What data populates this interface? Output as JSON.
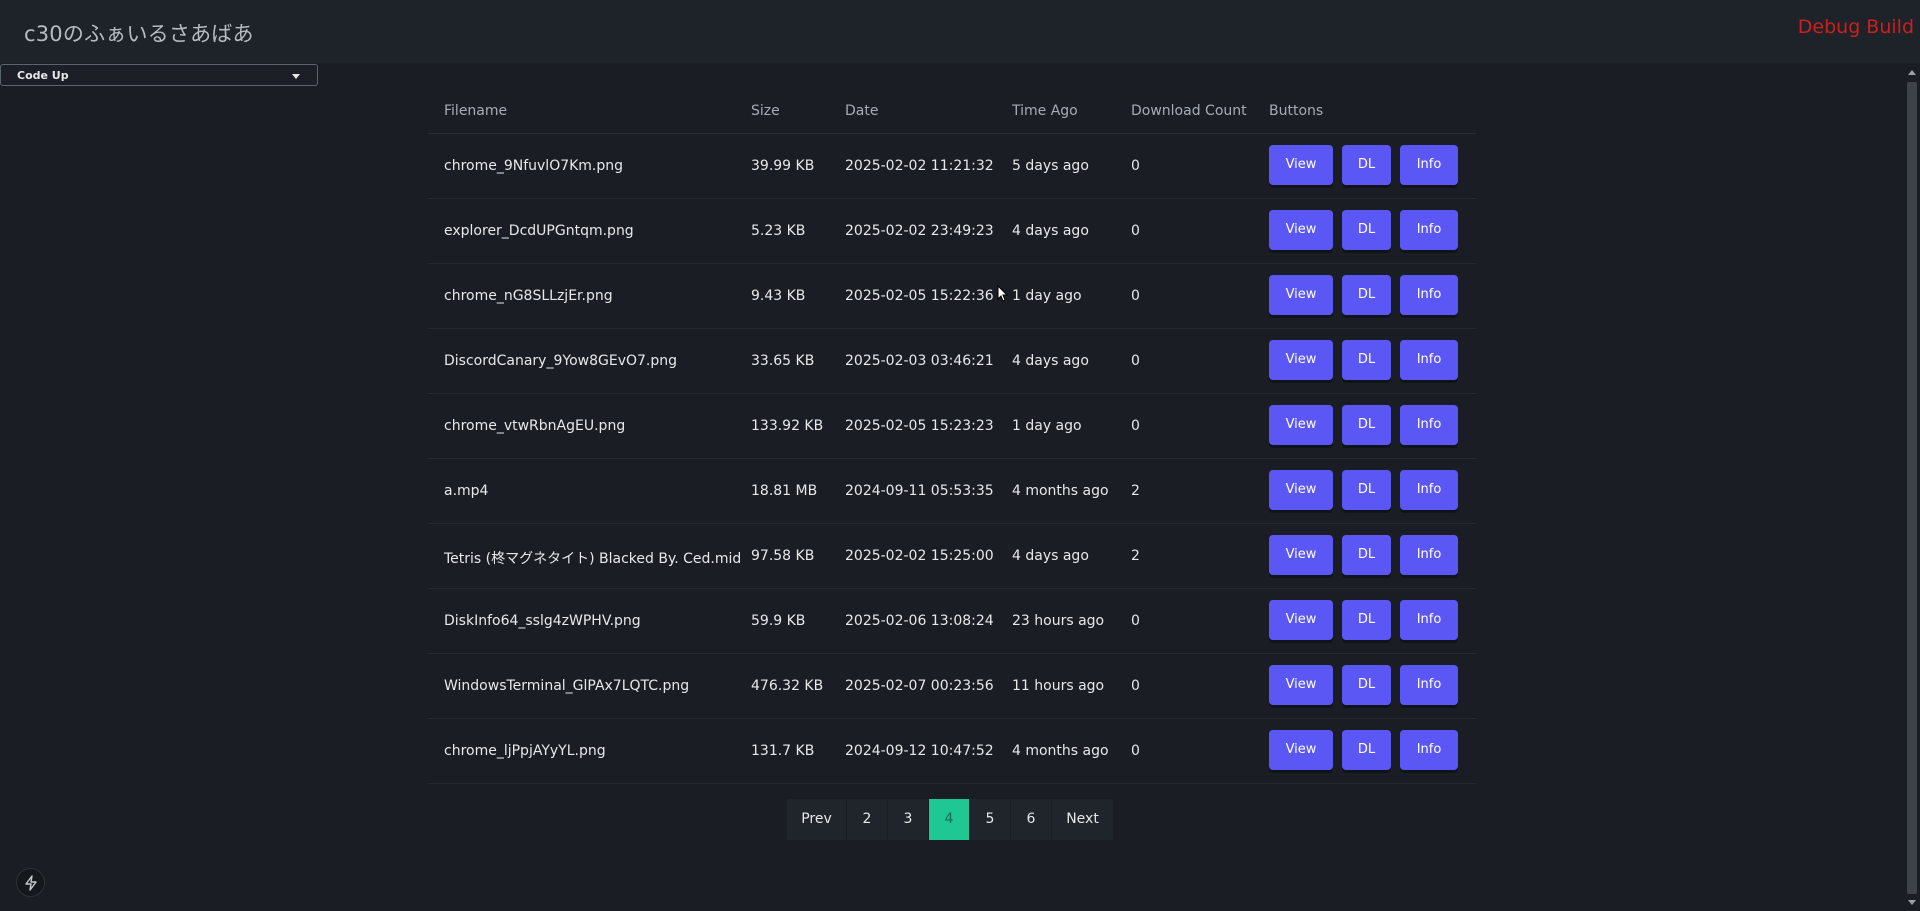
{
  "header": {
    "title": "c30のふぁいるさあばあ",
    "badge": "Debug Build"
  },
  "colors": {
    "accent": "#5b57f5",
    "active_page": "#1fc795",
    "debug": "#cc1f1f",
    "background": "#1a1e24"
  },
  "selector": {
    "value": "Code Up"
  },
  "table": {
    "headers": [
      "Filename",
      "Size",
      "Date",
      "Time Ago",
      "Download Count",
      "Buttons"
    ],
    "rows": [
      {
        "name": "chrome_9NfuvlO7Km.png",
        "size": "39.99 KB",
        "date": "2025-02-02 11:21:32",
        "ago": "5 days ago",
        "count": "0"
      },
      {
        "name": "explorer_DcdUPGntqm.png",
        "size": "5.23 KB",
        "date": "2025-02-02 23:49:23",
        "ago": "4 days ago",
        "count": "0"
      },
      {
        "name": "chrome_nG8SLLzjEr.png",
        "size": "9.43 KB",
        "date": "2025-02-05 15:22:36",
        "ago": "1 day ago",
        "count": "0"
      },
      {
        "name": "DiscordCanary_9Yow8GEvO7.png",
        "size": "33.65 KB",
        "date": "2025-02-03 03:46:21",
        "ago": "4 days ago",
        "count": "0"
      },
      {
        "name": "chrome_vtwRbnAgEU.png",
        "size": "133.92 KB",
        "date": "2025-02-05 15:23:23",
        "ago": "1 day ago",
        "count": "0"
      },
      {
        "name": "a.mp4",
        "size": "18.81 MB",
        "date": "2024-09-11 05:53:35",
        "ago": "4 months ago",
        "count": "2"
      },
      {
        "name": "Tetris (柊マグネタイト) Blacked By. Ced.mid",
        "size": "97.58 KB",
        "date": "2025-02-02 15:25:00",
        "ago": "4 days ago",
        "count": "2"
      },
      {
        "name": "DiskInfo64_sslg4zWPHV.png",
        "size": "59.9 KB",
        "date": "2025-02-06 13:08:24",
        "ago": "23 hours ago",
        "count": "0"
      },
      {
        "name": "WindowsTerminal_GlPAx7LQTC.png",
        "size": "476.32 KB",
        "date": "2025-02-07 00:23:56",
        "ago": "11 hours ago",
        "count": "0"
      },
      {
        "name": "chrome_ljPpjAYyYL.png",
        "size": "131.7 KB",
        "date": "2024-09-12 10:47:52",
        "ago": "4 months ago",
        "count": "0"
      }
    ],
    "buttons": {
      "view": "View",
      "dl": "DL",
      "info": "Info"
    }
  },
  "pagination": {
    "prev": "Prev",
    "next": "Next",
    "pages": [
      "2",
      "3",
      "4",
      "5",
      "6"
    ],
    "current": "4"
  },
  "icons": {
    "fab": "lightning-bolt-icon",
    "select": "caret-down-icon"
  }
}
